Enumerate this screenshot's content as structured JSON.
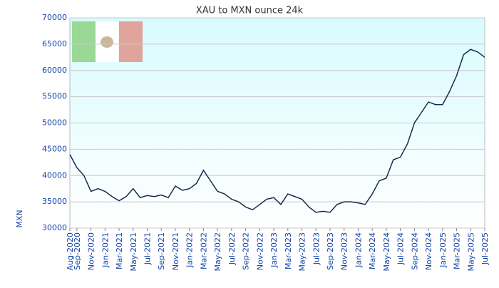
{
  "chart_data": {
    "type": "line",
    "title": "XAU to MXN ounce 24k",
    "y_label": "MXN",
    "categories": [
      "Aug-2020",
      "Sep-2020",
      null,
      "Nov-2020",
      null,
      "Jan-2021",
      null,
      "Mar-2021",
      null,
      "May-2021",
      null,
      "Jul-2021",
      null,
      "Sep-2021",
      null,
      "Nov-2021",
      null,
      "Jan-2022",
      null,
      "Mar-2022",
      null,
      "May-2022",
      null,
      "Jul-2022",
      null,
      "Sep-2022",
      null,
      "Nov-2022",
      null,
      "Jan-2023",
      null,
      "Mar-2023",
      null,
      "May-2023",
      null,
      "Jul-2023",
      null,
      "Sep-2023",
      null,
      "Nov-2023",
      null,
      "Jan-2024",
      null,
      "Mar-2024",
      null,
      "May-2024",
      null,
      "Jul-2024",
      null,
      "Sep-2024",
      null,
      "Nov-2024",
      null,
      "Jan-2025",
      null,
      "Mar-2025",
      null,
      "May-2025",
      null,
      "Jul-2025"
    ],
    "series": [
      {
        "name": "XAU/MXN",
        "color": "#1a2a4a",
        "values": [
          44000,
          41500,
          40000,
          37000,
          37500,
          37000,
          36000,
          35200,
          36000,
          37500,
          35800,
          36200,
          36000,
          36300,
          35800,
          38000,
          37200,
          37500,
          38500,
          41000,
          39000,
          37000,
          36500,
          35500,
          35000,
          34000,
          33500,
          34500,
          35500,
          35800,
          34500,
          36500,
          36000,
          35500,
          34000,
          33000,
          33200,
          33000,
          34500,
          35000,
          35000,
          34800,
          34500,
          36500,
          39000,
          39500,
          43000,
          43500,
          46000,
          50000,
          52000,
          54000,
          53500,
          53500,
          56000,
          59000,
          63000,
          64000,
          63500,
          62500
        ]
      }
    ],
    "ylim": [
      30000,
      70000
    ],
    "yticks": [
      30000,
      35000,
      40000,
      45000,
      50000,
      55000,
      60000,
      65000,
      70000
    ],
    "grid": true
  }
}
